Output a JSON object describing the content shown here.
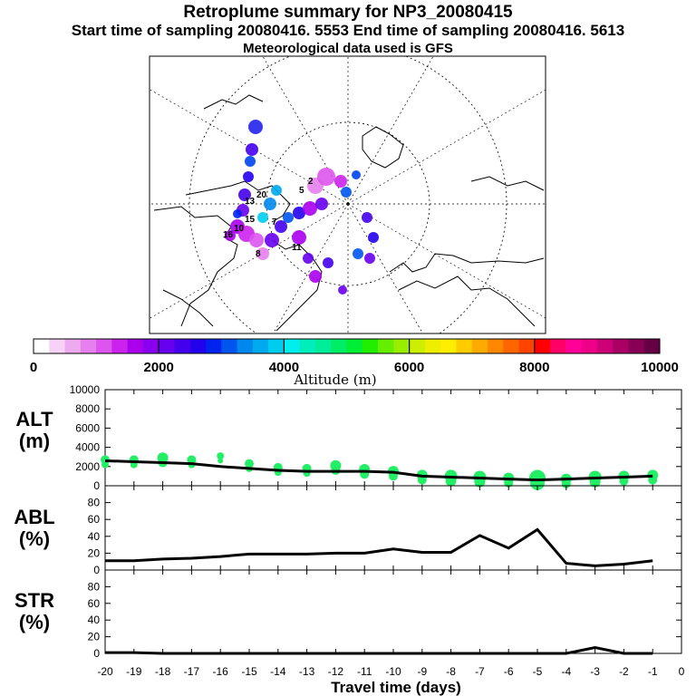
{
  "header": {
    "title": "Retroplume summary for NP3_20080415",
    "sampling": "Start time of sampling 20080416.  5553     End time of sampling 20080416.  5613",
    "met": "Meteorological data used is GFS"
  },
  "colorbar": {
    "label": "Altitude (m)",
    "ticks": [
      "0",
      "2000",
      "4000",
      "6000",
      "8000",
      "10000"
    ],
    "colors": [
      "#ffffff",
      "#f6d3f6",
      "#eeaaee",
      "#e680ee",
      "#dd55ee",
      "#cc22ee",
      "#aa00ee",
      "#8800ee",
      "#6600ee",
      "#4400ee",
      "#2200ee",
      "#0022ee",
      "#0055ee",
      "#0088ee",
      "#00aaee",
      "#00ccee",
      "#00eeee",
      "#00eebb",
      "#00ee99",
      "#00ee66",
      "#00ee33",
      "#22ee00",
      "#66ee00",
      "#99ee00",
      "#ccee00",
      "#eeee00",
      "#ffee00",
      "#ffcc00",
      "#ffaa00",
      "#ff8800",
      "#ff6600",
      "#ff4400",
      "#ff0000",
      "#ff0066",
      "#ff0099",
      "#ee0088",
      "#cc0077",
      "#aa0066",
      "#880055",
      "#660044"
    ]
  },
  "map": {
    "labels": [
      "20",
      "13",
      "15",
      "10",
      "16",
      "11",
      "2",
      "5",
      "8",
      "7"
    ]
  },
  "chart_data": [
    {
      "type": "line",
      "name": "ALT",
      "ylabel": "ALT\n(m)",
      "ylabel_line1": "ALT",
      "ylabel_line2": "(m)",
      "ylim": [
        0,
        10000
      ],
      "yticks": [
        "10000",
        "8000",
        "6000",
        "4000",
        "2000",
        "0"
      ],
      "x": [
        -20,
        -19,
        -18,
        -17,
        -16,
        -15,
        -14,
        -13,
        -12,
        -11,
        -10,
        -9,
        -8,
        -7,
        -6,
        -5,
        -4,
        -3,
        -2,
        -1
      ],
      "values": [
        2600,
        2500,
        2400,
        2300,
        2000,
        1800,
        1600,
        1500,
        1500,
        1500,
        1400,
        1000,
        900,
        800,
        700,
        600,
        700,
        800,
        900,
        1000
      ],
      "scatter": [
        {
          "x": -20,
          "y": 2700,
          "s": 5
        },
        {
          "x": -19,
          "y": 2700,
          "s": 5
        },
        {
          "x": -18,
          "y": 2900,
          "s": 6
        },
        {
          "x": -17,
          "y": 2700,
          "s": 5
        },
        {
          "x": -16,
          "y": 3100,
          "s": 4
        },
        {
          "x": -15,
          "y": 2300,
          "s": 5
        },
        {
          "x": -14,
          "y": 1900,
          "s": 5
        },
        {
          "x": -13,
          "y": 1800,
          "s": 5
        },
        {
          "x": -12,
          "y": 2100,
          "s": 6
        },
        {
          "x": -11,
          "y": 1700,
          "s": 6
        },
        {
          "x": -10,
          "y": 1500,
          "s": 6
        },
        {
          "x": -9,
          "y": 1100,
          "s": 6
        },
        {
          "x": -8,
          "y": 1000,
          "s": 7
        },
        {
          "x": -7,
          "y": 900,
          "s": 7
        },
        {
          "x": -6,
          "y": 800,
          "s": 6
        },
        {
          "x": -5,
          "y": 800,
          "s": 9
        },
        {
          "x": -4,
          "y": 700,
          "s": 6
        },
        {
          "x": -3,
          "y": 900,
          "s": 7
        },
        {
          "x": -2,
          "y": 1000,
          "s": 6
        },
        {
          "x": -1,
          "y": 1100,
          "s": 6
        }
      ]
    },
    {
      "type": "line",
      "name": "ABL",
      "ylabel_line1": "ABL",
      "ylabel_line2": "(%)",
      "ylim": [
        0,
        100
      ],
      "yticks": [
        "80",
        "60",
        "40",
        "20",
        "0"
      ],
      "x": [
        -20,
        -19,
        -18,
        -17,
        -16,
        -15,
        -14,
        -13,
        -12,
        -11,
        -10,
        -9,
        -8,
        -7,
        -6,
        -5,
        -4,
        -3,
        -2,
        -1
      ],
      "values": [
        11,
        11,
        13,
        14,
        16,
        19,
        19,
        19,
        20,
        20,
        25,
        21,
        21,
        41,
        26,
        48,
        8,
        5,
        7,
        11
      ]
    },
    {
      "type": "line",
      "name": "STR",
      "ylabel_line1": "STR",
      "ylabel_line2": "(%)",
      "ylim": [
        0,
        100
      ],
      "yticks": [
        "80",
        "60",
        "40",
        "20",
        "0"
      ],
      "x": [
        -20,
        -19,
        -18,
        -17,
        -16,
        -15,
        -14,
        -13,
        -12,
        -11,
        -10,
        -9,
        -8,
        -7,
        -6,
        -5,
        -4,
        -3,
        -2,
        -1
      ],
      "values": [
        1,
        1,
        0,
        0,
        0,
        0,
        0,
        0,
        0,
        0,
        0,
        0,
        0,
        0,
        0,
        0,
        0,
        7,
        0,
        0
      ]
    }
  ],
  "xaxis": {
    "label": "Travel time (days)",
    "ticks": [
      "-20",
      "-19",
      "-18",
      "-17",
      "-16",
      "-15",
      "-14",
      "-13",
      "-12",
      "-11",
      "-10",
      "-9",
      "-8",
      "-7",
      "-6",
      "-5",
      "-4",
      "-3",
      "-2",
      "-1",
      "0"
    ],
    "xlim": [
      -20,
      0
    ]
  }
}
